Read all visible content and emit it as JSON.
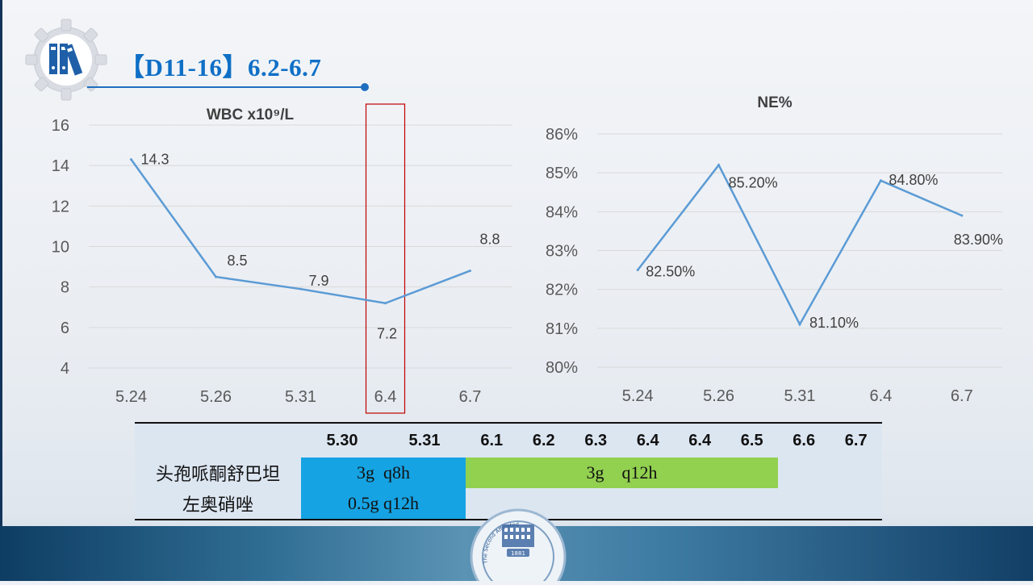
{
  "title": "【D11-16】6.2-6.7",
  "icons": {
    "logo": "binders-gear-icon",
    "seal": "hospital-seal-icon"
  },
  "seal": {
    "text": "The Second Affiliated Hospital of FMU",
    "year": "1881"
  },
  "colors": {
    "line": "#5b9bd5",
    "title": "#0f6fc6",
    "highlight_box": "#c00000",
    "blue_cell": "#16a3e3",
    "green_cell": "#92d050"
  },
  "chart_data": [
    {
      "type": "line",
      "title": "WBC x10⁹/L",
      "categories": [
        "5.24",
        "5.26",
        "5.31",
        "6.4",
        "6.7"
      ],
      "values": [
        14.3,
        8.5,
        7.9,
        7.2,
        8.8
      ],
      "data_labels": [
        "14.3",
        "8.5",
        "7.9",
        "7.2",
        "8.8"
      ],
      "y_ticks": [
        "4",
        "6",
        "8",
        "10",
        "12",
        "14",
        "16"
      ],
      "ylim": [
        4,
        16
      ],
      "grid": true,
      "highlight_category": "6.4"
    },
    {
      "type": "line",
      "title": "NE%",
      "categories": [
        "5.24",
        "5.26",
        "5.31",
        "6.4",
        "6.7"
      ],
      "values": [
        82.5,
        85.2,
        81.1,
        84.8,
        83.9
      ],
      "data_labels": [
        "82.50%",
        "85.20%",
        "81.10%",
        "84.80%",
        "83.90%"
      ],
      "y_ticks": [
        "80%",
        "81%",
        "82%",
        "83%",
        "84%",
        "85%",
        "86%"
      ],
      "ylim": [
        80,
        86
      ],
      "grid": true
    }
  ],
  "table": {
    "dates": [
      "5.30",
      "5.31",
      "6.1",
      "6.2",
      "6.3",
      "6.4",
      "6.4",
      "6.5",
      "6.6",
      "6.7"
    ],
    "rows": [
      {
        "drug": "头孢哌酮舒巴坦",
        "dose1": "3g  q8h",
        "dose2": "3g    q12h"
      },
      {
        "drug": "左奥硝唑",
        "dose1": "0.5g q12h"
      }
    ]
  }
}
